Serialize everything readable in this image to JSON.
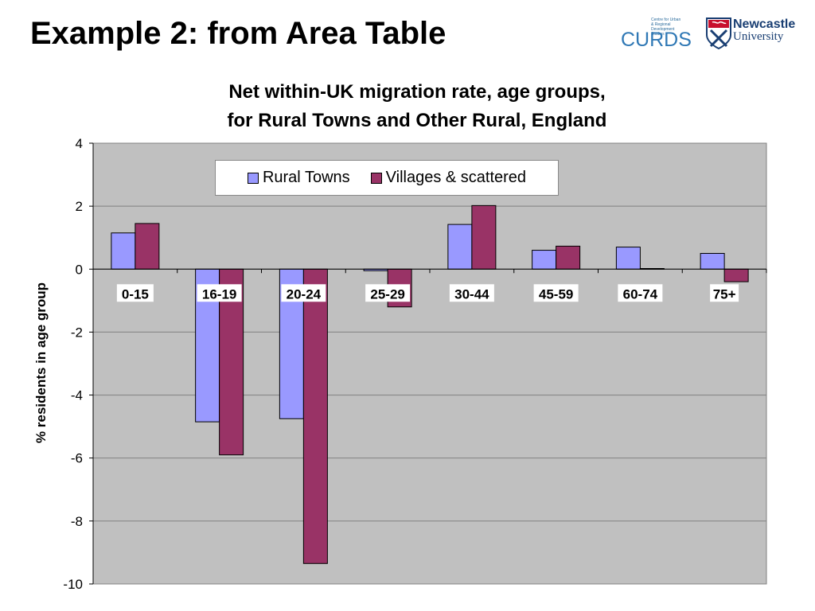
{
  "slide": {
    "title": "Example 2: from Area Table"
  },
  "logos": {
    "curds_small_text": "Centre for Urban & Regional Development Studies",
    "curds_word": "CURDS",
    "newcastle_name": "Newcastle",
    "newcastle_university": "University"
  },
  "chart_data": {
    "type": "bar",
    "title_line1": "Net within-UK migration rate, age groups,",
    "title_line2": "for Rural Towns and Other Rural, England",
    "xlabel": "",
    "ylabel": "% residents in age group",
    "ylim": [
      -10,
      4
    ],
    "yticks": [
      4,
      2,
      0,
      -2,
      -4,
      -6,
      -8,
      -10
    ],
    "grid": true,
    "legend_position": "top-center",
    "plot_background": "#c0c0c0",
    "categories": [
      "0-15",
      "16-19",
      "20-24",
      "25-29",
      "30-44",
      "45-59",
      "60-74",
      "75+"
    ],
    "series": [
      {
        "name": "Rural Towns",
        "color": "#9999ff",
        "values": [
          1.15,
          -4.85,
          -4.75,
          -0.05,
          1.42,
          0.6,
          0.7,
          0.5
        ]
      },
      {
        "name": "Villages & scattered",
        "color": "#993366",
        "values": [
          1.45,
          -5.9,
          -9.35,
          -1.2,
          2.02,
          0.73,
          0.02,
          -0.4
        ]
      }
    ]
  }
}
